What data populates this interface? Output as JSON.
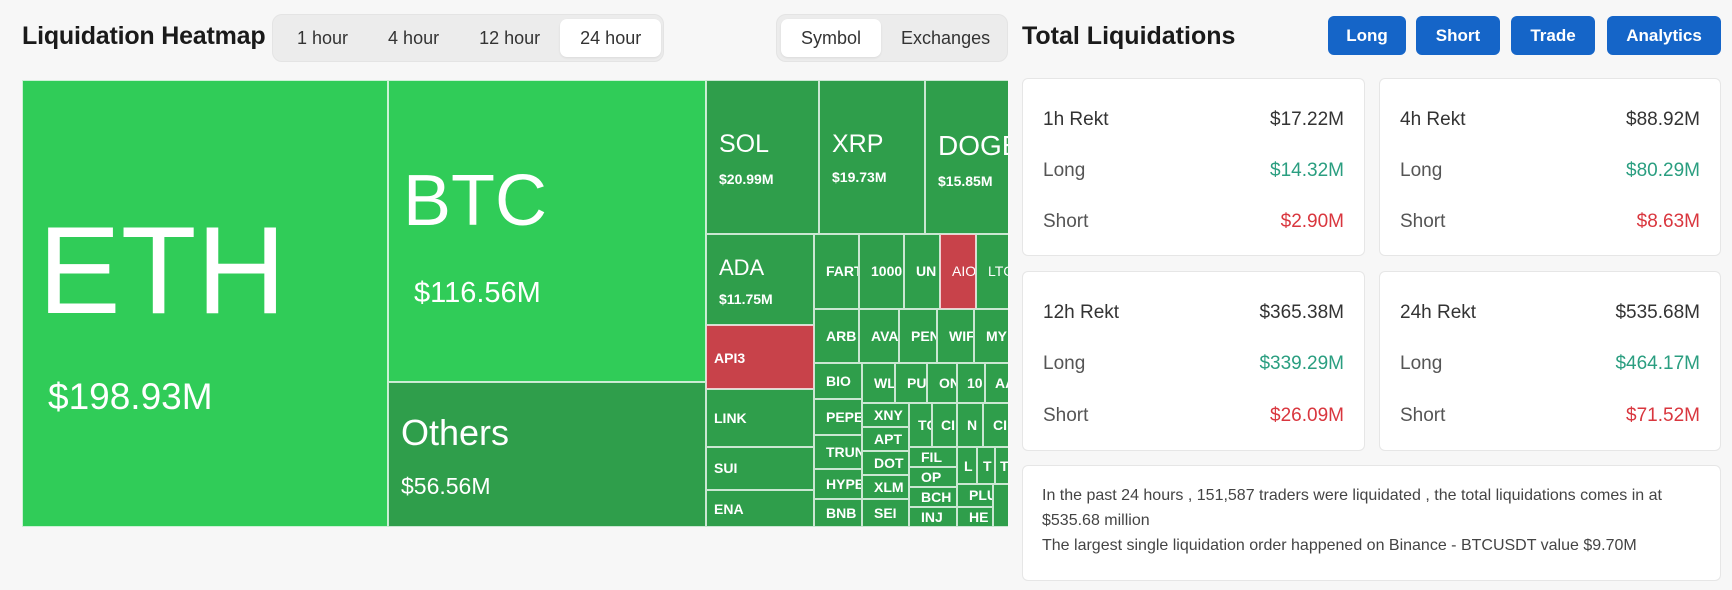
{
  "heatmap": {
    "title": "Liquidation Heatmap",
    "time_tabs": [
      "1 hour",
      "4 hour",
      "12 hour",
      "24 hour"
    ],
    "active_time_tab": "24 hour",
    "view_tabs": [
      "Symbol",
      "Exchanges"
    ],
    "active_view_tab": "Symbol",
    "tiles": [
      {
        "symbol": "ETH",
        "value": "$198.93M",
        "color": "#30cc58"
      },
      {
        "symbol": "BTC",
        "value": "$116.56M",
        "color": "#30cc58"
      },
      {
        "symbol": "Others",
        "value": "$56.56M",
        "color": "#2f9e4b"
      },
      {
        "symbol": "SOL",
        "value": "$20.99M",
        "color": "#2f9e4b"
      },
      {
        "symbol": "XRP",
        "value": "$19.73M",
        "color": "#2f9e4b"
      },
      {
        "symbol": "DOGE",
        "value": "$15.85M",
        "color": "#2f9e4b"
      },
      {
        "symbol": "ADA",
        "value": "$11.75M",
        "color": "#2f9e4b"
      }
    ],
    "small_tiles": {
      "api3": "API3",
      "link": "LINK",
      "sui": "SUI",
      "ena": "ENA",
      "fart": "FART",
      "k1000": "1000",
      "un": "UN",
      "aio": "AIO",
      "ltc": "LTC",
      "arb": "ARB",
      "ava": "AVA",
      "pen": "PEN",
      "wif": "WIF",
      "my": "MY",
      "bio": "BIO",
      "wl": "WL",
      "pu": "PU",
      "on": "ON",
      "n10": "10",
      "aa": "AA",
      "pepe": "PEPE",
      "xny": "XNY",
      "tc": "TC",
      "ci": "CI",
      "nk": "N",
      "cr": "CI",
      "trun": "TRUN",
      "apt": "APT",
      "fil": "FIL",
      "l": "L",
      "t1": "T",
      "t2": "T",
      "hype": "HYPE",
      "dot": "DOT",
      "op": "OP",
      "xlm": "XLM",
      "bch": "BCH",
      "plu": "PLU",
      "bnb": "BNB",
      "sei": "SEI",
      "inj": "INJ",
      "he": "HE"
    },
    "colors": {
      "green_bright": "#30cc58",
      "green_dark": "#2f9e4b",
      "red": "#c8424a"
    }
  },
  "liquidations": {
    "title": "Total Liquidations",
    "buttons": [
      "Long",
      "Short",
      "Trade",
      "Analytics"
    ],
    "cards": [
      {
        "period": "1h Rekt",
        "total": "$17.22M",
        "long_label": "Long",
        "long": "$14.32M",
        "short_label": "Short",
        "short": "$2.90M"
      },
      {
        "period": "4h Rekt",
        "total": "$88.92M",
        "long_label": "Long",
        "long": "$80.29M",
        "short_label": "Short",
        "short": "$8.63M"
      },
      {
        "period": "12h Rekt",
        "total": "$365.38M",
        "long_label": "Long",
        "long": "$339.29M",
        "short_label": "Short",
        "short": "$26.09M"
      },
      {
        "period": "24h Rekt",
        "total": "$535.68M",
        "long_label": "Long",
        "long": "$464.17M",
        "short_label": "Short",
        "short": "$71.52M"
      }
    ],
    "summary_line1": "In the past 24 hours , 151,587 traders were liquidated , the total liquidations comes in at $535.68 million",
    "summary_line2": "The largest single liquidation order happened on Binance - BTCUSDT value $9.70M",
    "colors": {
      "button_blue": "#1565c8",
      "long_green": "#2a9e80",
      "short_red": "#d9363e"
    }
  }
}
